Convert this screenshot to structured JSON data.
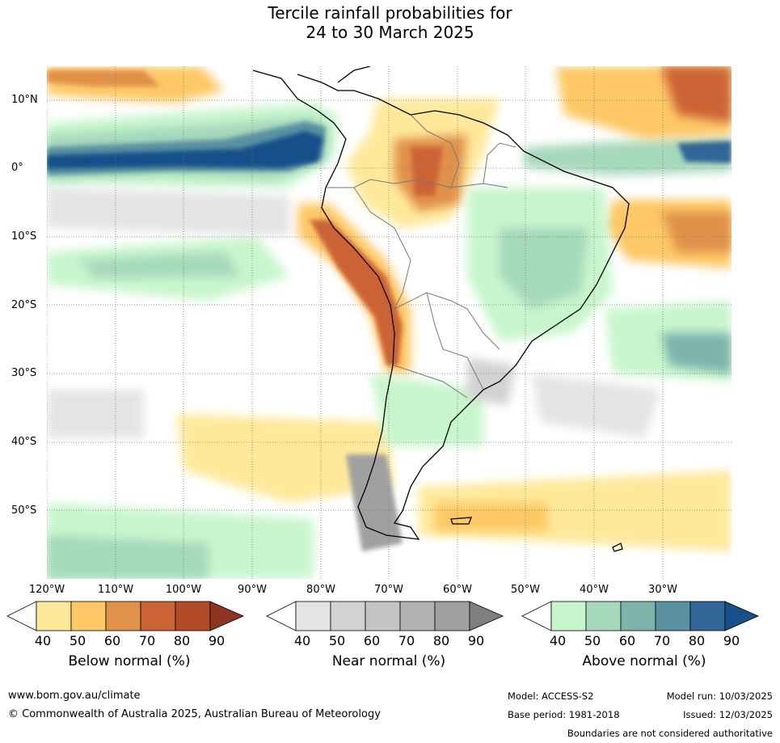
{
  "title": {
    "line1": "Tercile rainfall probabilities for",
    "line2": "24 to 30 March 2025"
  },
  "map": {
    "lat_labels": [
      "10°N",
      "0°",
      "10°S",
      "20°S",
      "30°S",
      "40°S",
      "50°S"
    ],
    "lon_labels": [
      "120°W",
      "110°W",
      "100°W",
      "90°W",
      "80°W",
      "70°W",
      "60°W",
      "50°W",
      "40°W",
      "30°W"
    ]
  },
  "legends": [
    {
      "title": "Below normal (%)",
      "ticks": [
        "40",
        "50",
        "60",
        "70",
        "80",
        "90"
      ],
      "colors": [
        "#ffffff",
        "#fee99a",
        "#fdc865",
        "#e0914a",
        "#cc6334",
        "#b04a27",
        "#8e3420"
      ]
    },
    {
      "title": "Near normal (%)",
      "ticks": [
        "40",
        "50",
        "60",
        "70",
        "80",
        "90"
      ],
      "colors": [
        "#ffffff",
        "#e4e4e4",
        "#d2d2d2",
        "#c4c4c4",
        "#b2b2b2",
        "#a0a0a0",
        "#7f7f7f"
      ]
    },
    {
      "title": "Above normal (%)",
      "ticks": [
        "40",
        "50",
        "60",
        "70",
        "80",
        "90"
      ],
      "colors": [
        "#ffffff",
        "#c8f6cc",
        "#a6d8bb",
        "#7cb4ac",
        "#5a92a2",
        "#336699",
        "#17508a"
      ]
    }
  ],
  "footer": {
    "website": "www.bom.gov.au/climate",
    "copyright": "© Commonwealth of Australia 2025, Australian Bureau of Meteorology",
    "model": "Model: ACCESS-S2",
    "base_period": "Base period: 1981-2018",
    "model_run": "Model run: 10/03/2025",
    "issued": "Issued: 12/03/2025",
    "boundaries": "Boundaries are not considered authoritative"
  }
}
